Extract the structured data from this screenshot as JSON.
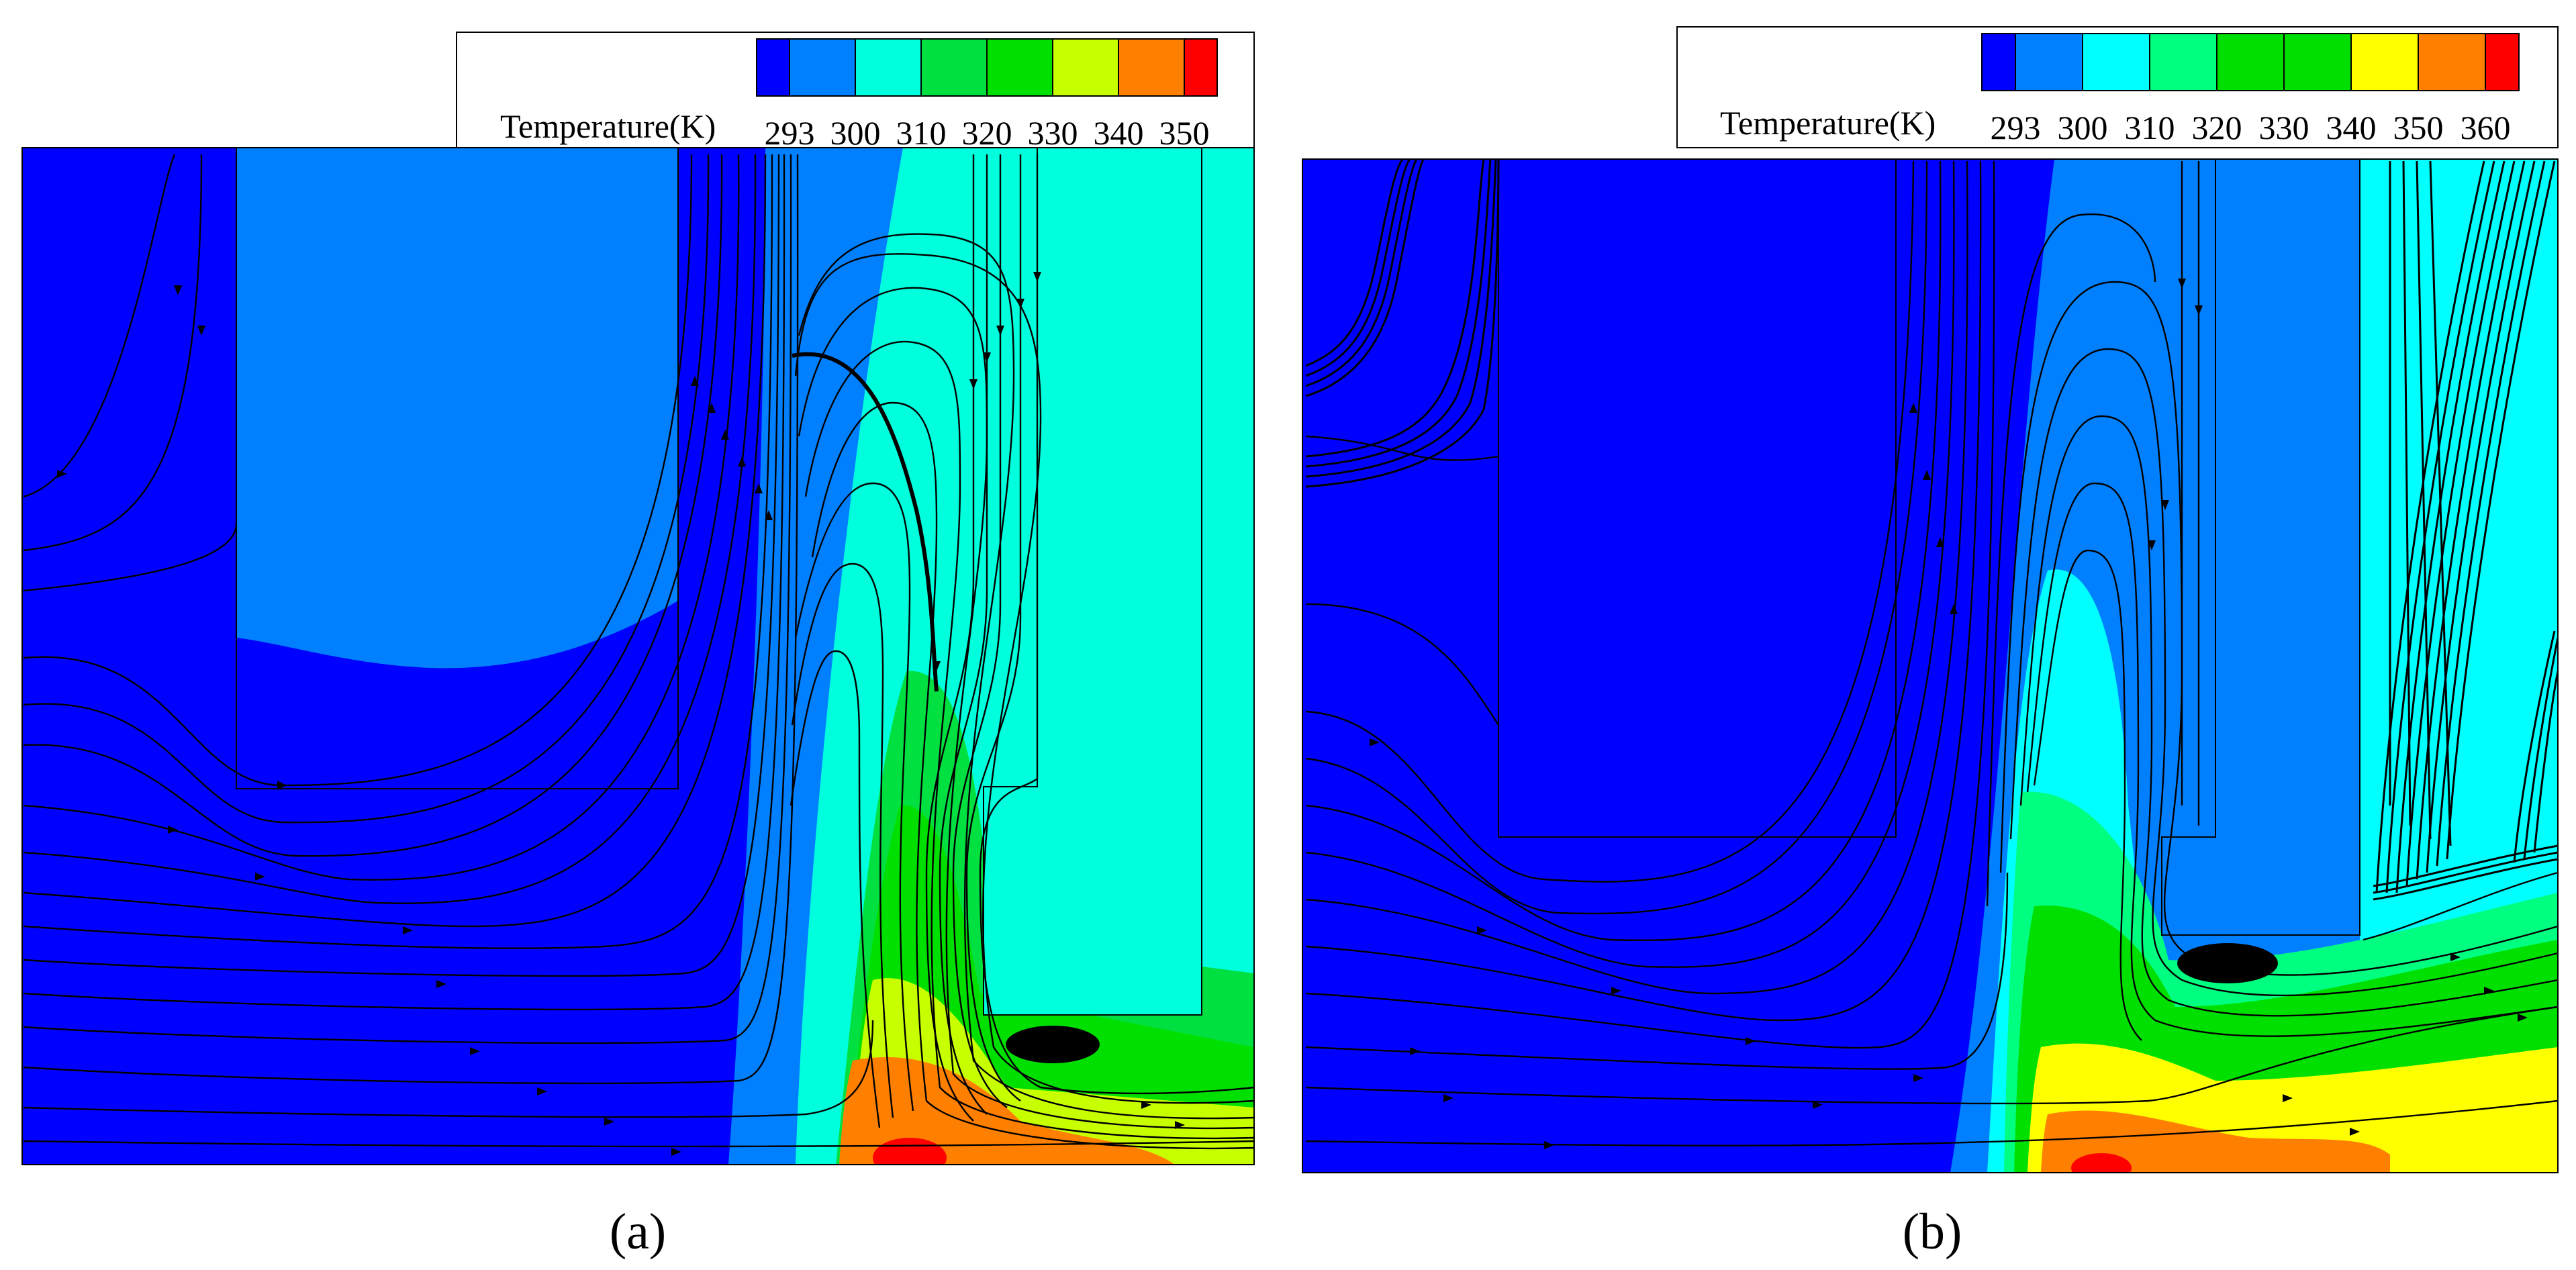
{
  "figure": {
    "panels": [
      {
        "id": "a",
        "label_text": "(a)",
        "legend": {
          "title": "Temperature(K)",
          "ticks": [
            "293",
            "300",
            "310",
            "320",
            "330",
            "340",
            "350"
          ],
          "colors": [
            "#0000ff",
            "#0080ff",
            "#00ffdd",
            "#00e040",
            "#00e000",
            "#c8ff00",
            "#ff8000",
            "#ff0000"
          ]
        }
      },
      {
        "id": "b",
        "label_text": "(b)",
        "legend": {
          "title": "Temperature(K)",
          "ticks": [
            "293",
            "300",
            "310",
            "320",
            "330",
            "340",
            "350",
            "360"
          ],
          "colors": [
            "#0000ff",
            "#0080ff",
            "#00ffff",
            "#00ff80",
            "#00e000",
            "#00e000",
            "#ffff00",
            "#ff8000",
            "#ff0000"
          ]
        }
      }
    ]
  }
}
